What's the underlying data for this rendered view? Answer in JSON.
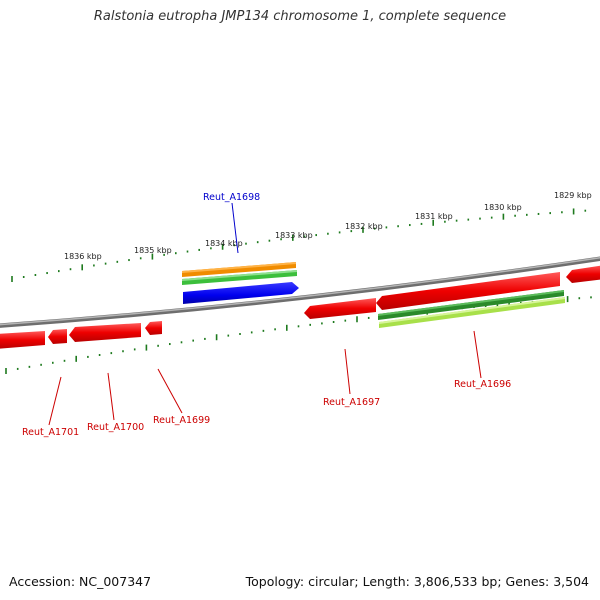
{
  "title": "Ralstonia eutropha JMP134 chromosome 1, complete sequence",
  "footer": {
    "accession": "Accession: NC_007347",
    "summary": "Topology: circular; Length: 3,806,533 bp; Genes: 3,504"
  },
  "colors": {
    "backbone": "#8c8c8c",
    "tick": "#1e7a1e",
    "forward_gene": "#ee0000",
    "reverse_gene": "#ee0000",
    "label_red": "#cc0000",
    "label_blue": "#0000cc",
    "orange_track": "#f08c00",
    "green_track": "#3cbf3c",
    "blue_track": "#0000ee",
    "dark_green_track": "#2a8a2a",
    "light_green_track": "#a8e04a"
  },
  "kbp_labels": [
    "1836 kbp",
    "1835 kbp",
    "1834 kbp",
    "1833 kbp",
    "1832 kbp",
    "1831 kbp",
    "1830 kbp",
    "1829 kbp"
  ],
  "gene_labels": [
    {
      "text": "Reut_A1698",
      "color": "label_blue"
    },
    {
      "text": "Reut_A1701",
      "color": "label_red"
    },
    {
      "text": "Reut_A1700",
      "color": "label_red"
    },
    {
      "text": "Reut_A1699",
      "color": "label_red"
    },
    {
      "text": "Reut_A1697",
      "color": "label_red"
    },
    {
      "text": "Reut_A1696",
      "color": "label_red"
    }
  ]
}
